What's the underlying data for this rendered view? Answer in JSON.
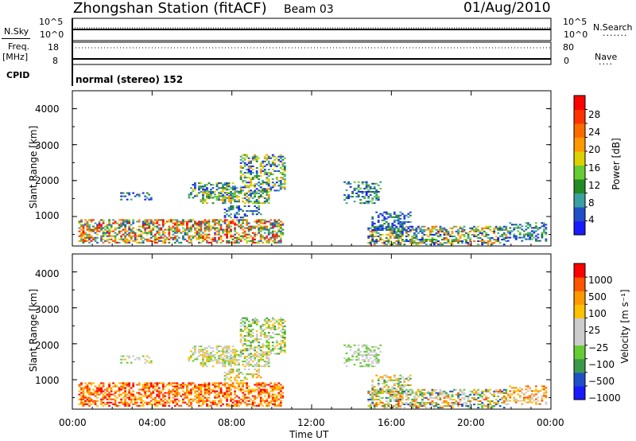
{
  "header": {
    "station": "Zhongshan Station (fitACF)",
    "beam": "Beam 03",
    "date": "01/Aug/2010"
  },
  "aux_panels": {
    "nsky_label": "N.Sky",
    "nsky_ticks": [
      "10^5",
      "10^0"
    ],
    "nsearch_label": "N.Search",
    "nsearch_ticks": [
      "10^5",
      "10^0"
    ],
    "freq_label": "Freq.",
    "freq_unit": "[MHz]",
    "freq_ticks": [
      "18",
      "8"
    ],
    "nave_label": "Nave",
    "nave_ticks": [
      "80",
      "0"
    ],
    "cpid_label": "CPID",
    "cpid_text": "normal (stereo) 152"
  },
  "colors": {
    "power_scale": [
      "#1a1aff",
      "#2050c8",
      "#3aa0a0",
      "#228b22",
      "#66cc33",
      "#ddd000",
      "#ff9900",
      "#ff6a00",
      "#ff3300",
      "#ff0000"
    ],
    "velocity_scale": [
      "#ff0000",
      "#ff5500",
      "#ff9900",
      "#ffc000",
      "#cccccc",
      "#cccccc",
      "#66cc33",
      "#3a9a4a",
      "#2050c8",
      "#1a1aff"
    ]
  },
  "chart_data": [
    {
      "type": "heatmap",
      "title": "Power",
      "ylabel": "Slant Range [km]",
      "xlabel": "Time UT",
      "x_ticks": [
        "00:00",
        "04:00",
        "08:00",
        "12:00",
        "16:00",
        "20:00",
        "00:00"
      ],
      "y_ticks": [
        "1000",
        "2000",
        "3000",
        "4000"
      ],
      "ylim": [
        180,
        4500
      ],
      "xlim_hours": [
        0,
        24
      ],
      "colorbar_label": "Power [dB]",
      "colorbar_ticks": [
        "4",
        "8",
        "12",
        "16",
        "20",
        "24",
        "28"
      ],
      "colorbar_range": [
        0,
        30
      ]
    },
    {
      "type": "heatmap",
      "title": "Velocity",
      "ylabel": "Slant Range [km]",
      "xlabel": "Time UT",
      "x_ticks": [
        "00:00",
        "04:00",
        "08:00",
        "12:00",
        "16:00",
        "20:00",
        "00:00"
      ],
      "y_ticks": [
        "1000",
        "2000",
        "3000",
        "4000"
      ],
      "ylim": [
        180,
        4500
      ],
      "xlim_hours": [
        0,
        24
      ],
      "colorbar_label": "Velocity [m s⁻¹]",
      "colorbar_ticks": [
        "1000",
        "500",
        "100",
        "25",
        "−25",
        "−100",
        "−500",
        "−1000"
      ]
    }
  ],
  "xaxis_label": "Time UT"
}
